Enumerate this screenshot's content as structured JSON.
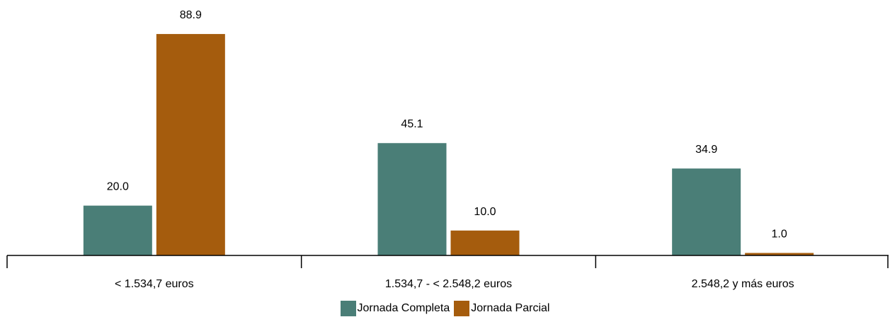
{
  "chart_data": {
    "type": "bar",
    "categories": [
      "< 1.534,7 euros",
      "1.534,7 - < 2.548,2 euros",
      "2.548,2 y más euros"
    ],
    "series": [
      {
        "name": "Jornada Completa",
        "values": [
          20.0,
          45.1,
          34.9
        ],
        "value_labels": [
          "20.0",
          "45.1",
          "34.9"
        ],
        "color": "#4a7e77"
      },
      {
        "name": "Jornada Parcial",
        "values": [
          88.9,
          10.0,
          1.0
        ],
        "value_labels": [
          "88.9",
          "10.0",
          "1.0"
        ],
        "color": "#a55c0d"
      }
    ],
    "title": "",
    "xlabel": "",
    "ylabel": "",
    "ylim": [
      0,
      100
    ],
    "grid": false,
    "legend_position": "bottom"
  }
}
